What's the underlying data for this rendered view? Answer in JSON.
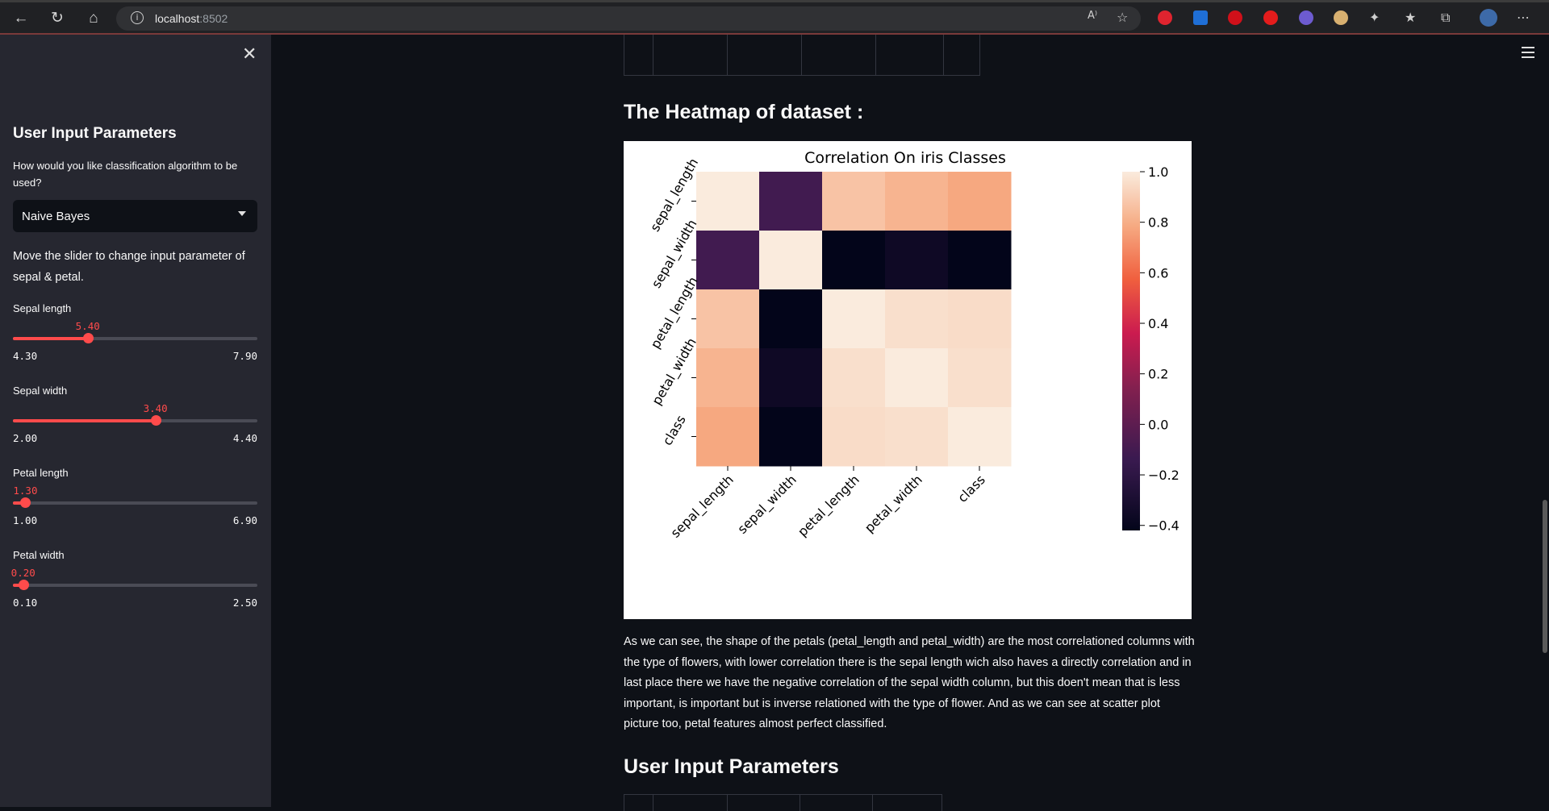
{
  "browser": {
    "url_host": "localhost",
    "url_port": ":8502"
  },
  "sidebar": {
    "title": "User Input Parameters",
    "algorithm_label": "How would you like classification algorithm to be used?",
    "algorithm_selected": "Naive Bayes",
    "slider_help": "Move the slider to change input parameter of sepal & petal.",
    "sliders": [
      {
        "label": "Sepal length",
        "value": "5.40",
        "min": "4.30",
        "max": "7.90",
        "fraction": 0.306
      },
      {
        "label": "Sepal width",
        "value": "3.40",
        "min": "2.00",
        "max": "4.40",
        "fraction": 0.583
      },
      {
        "label": "Petal length",
        "value": "1.30",
        "min": "1.00",
        "max": "6.90",
        "fraction": 0.051
      },
      {
        "label": "Petal width",
        "value": "0.20",
        "min": "0.10",
        "max": "2.50",
        "fraction": 0.042
      }
    ]
  },
  "main": {
    "heatmap_heading": "The Heatmap of dataset :",
    "explanation": "As we can see, the shape of the petals (petal_length and petal_width) are the most correlationed columns with the type of flowers, with lower correlation there is the sepal length wich also haves a directly correlation and in last place there we have the negative correlation of the sepal width column, but this doen't mean that is less important, is important but is inverse relationed with the type of flower. And as we can see at scatter plot picture too, petal features almost perfect classified.",
    "user_input_heading": "User Input Parameters"
  },
  "chart_data": {
    "type": "heatmap",
    "title": "Correlation On iris Classes",
    "x_labels": [
      "sepal_length",
      "sepal_width",
      "petal_length",
      "petal_width",
      "class"
    ],
    "y_labels": [
      "sepal_length",
      "sepal_width",
      "petal_length",
      "petal_width",
      "class"
    ],
    "values": [
      [
        1.0,
        -0.11,
        0.87,
        0.82,
        0.78
      ],
      [
        -0.11,
        1.0,
        -0.42,
        -0.36,
        -0.42
      ],
      [
        0.87,
        -0.42,
        1.0,
        0.96,
        0.95
      ],
      [
        0.82,
        -0.36,
        0.96,
        1.0,
        0.96
      ],
      [
        0.78,
        -0.42,
        0.95,
        0.96,
        1.0
      ]
    ],
    "colorbar_range": [
      -0.42,
      1.0
    ],
    "colorbar_ticks": [
      "1.0",
      "0.8",
      "0.6",
      "0.4",
      "0.2",
      "0.0",
      "−0.2",
      "−0.4"
    ],
    "colorbar_tick_values": [
      1.0,
      0.8,
      0.6,
      0.4,
      0.2,
      0.0,
      -0.2,
      -0.4
    ],
    "colormap": "rocket"
  }
}
